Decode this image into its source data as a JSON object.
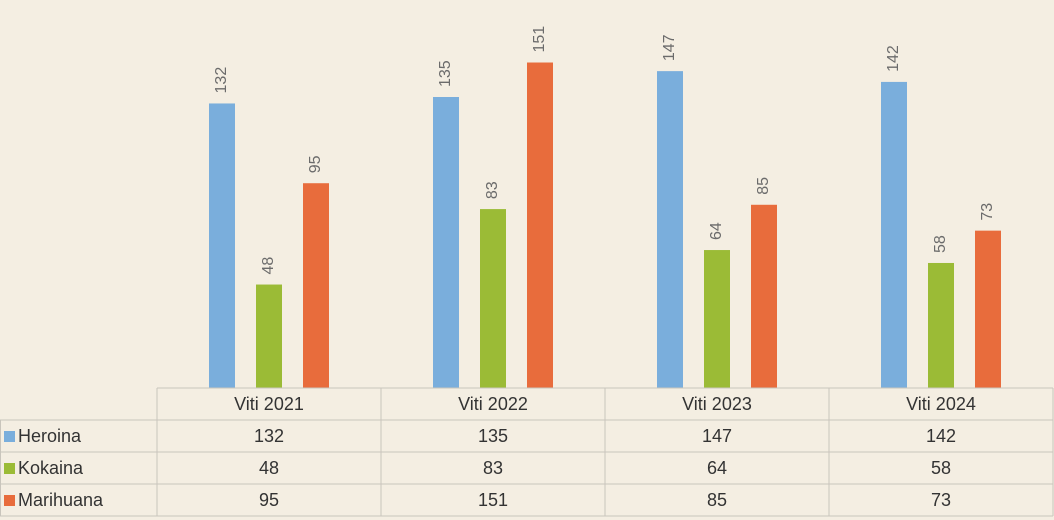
{
  "chart_data": {
    "type": "bar",
    "categories": [
      "Viti 2021",
      "Viti 2022",
      "Viti 2023",
      "Viti 2024"
    ],
    "series": [
      {
        "name": "Heroina",
        "color": "#7aaedc",
        "values": [
          132,
          135,
          147,
          142
        ]
      },
      {
        "name": "Kokaina",
        "color": "#9bbb36",
        "values": [
          48,
          83,
          64,
          58
        ]
      },
      {
        "name": "Marihuana",
        "color": "#e86c3c",
        "values": [
          95,
          151,
          85,
          73
        ]
      }
    ],
    "ylim": [
      0,
      180
    ]
  }
}
